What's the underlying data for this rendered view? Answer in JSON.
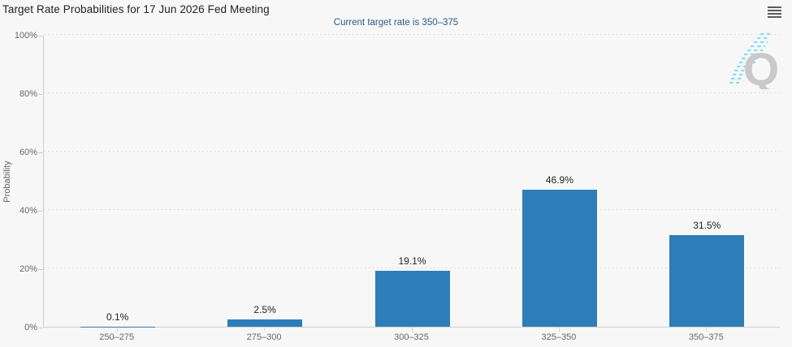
{
  "header": {
    "title": "Target Rate Probabilities for 17 Jun 2026 Fed Meeting",
    "subtitle": "Current target rate is 350–375"
  },
  "menu": {
    "icon": "hamburger-menu"
  },
  "watermark": {
    "letter": "Q"
  },
  "colors": {
    "background": "#f7f7f7",
    "bar": "#2d7eb8",
    "title_text": "#222222",
    "subtitle_text": "#2b5c88",
    "axis_text": "#666666",
    "grid_line": "#d8d8d8",
    "axis_line": "#cfcfcf",
    "logo_gray": "#c9c9c9",
    "logo_blue": "#8edcf4"
  },
  "chart_data": {
    "type": "bar",
    "title": "Target Rate Probabilities for 17 Jun 2026 Fed Meeting",
    "subtitle": "Current target rate is 350–375",
    "categories": [
      "250–275",
      "275–300",
      "300–325",
      "325–350",
      "350–375"
    ],
    "values": [
      0.1,
      2.5,
      19.1,
      46.9,
      31.5
    ],
    "data_labels": [
      "0.1%",
      "2.5%",
      "19.1%",
      "46.9%",
      "31.5%"
    ],
    "xlabel": "",
    "ylabel": "Probability",
    "ylim": [
      0,
      100
    ],
    "yticks": [
      {
        "value": 0,
        "label": "0%"
      },
      {
        "value": 20,
        "label": "20%"
      },
      {
        "value": 40,
        "label": "40%"
      },
      {
        "value": 60,
        "label": "60%"
      },
      {
        "value": 80,
        "label": "80%"
      },
      {
        "value": 100,
        "label": "100%"
      }
    ],
    "grid": "horizontal-dotted",
    "legend": "none"
  }
}
